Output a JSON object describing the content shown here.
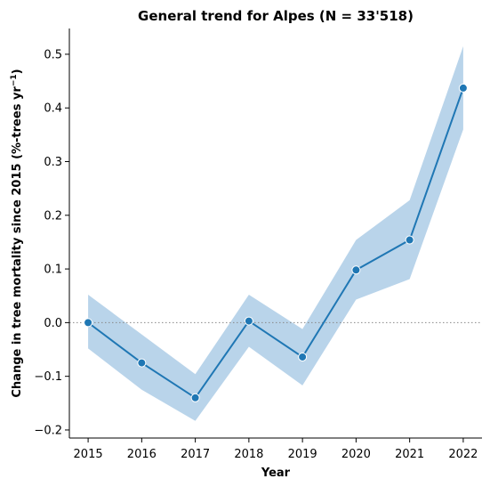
{
  "chart_data": {
    "type": "line",
    "title": "General trend for Alpes  (N = 33'518)",
    "xlabel": "Year",
    "ylabel_prefix": "Change in tree mortality since 2015 (%-trees yr",
    "ylabel_superscript": "−1",
    "ylabel_suffix": ")",
    "x": [
      2015,
      2016,
      2017,
      2018,
      2019,
      2020,
      2021,
      2022
    ],
    "x_tick_labels": [
      "2015",
      "2016",
      "2017",
      "2018",
      "2019",
      "2020",
      "2021",
      "2022"
    ],
    "values": [
      0.0,
      -0.075,
      -0.14,
      0.003,
      -0.064,
      0.098,
      0.154,
      0.437
    ],
    "ci_lower": [
      -0.048,
      -0.125,
      -0.183,
      -0.045,
      -0.117,
      0.043,
      0.081,
      0.36
    ],
    "ci_upper": [
      0.052,
      -0.022,
      -0.096,
      0.052,
      -0.012,
      0.154,
      0.228,
      0.515
    ],
    "y_ticks": [
      -0.2,
      -0.1,
      0.0,
      0.1,
      0.2,
      0.3,
      0.4,
      0.5
    ],
    "y_tick_labels": [
      "−0.2",
      "−0.1",
      "0.0",
      "0.1",
      "0.2",
      "0.3",
      "0.4",
      "0.5"
    ],
    "xlim": [
      2014.65,
      2022.35
    ],
    "ylim": [
      -0.215,
      0.548
    ],
    "reference_line_y": 0.0,
    "grid": false,
    "line_color": "#1f77b4",
    "band_color": "#b9d4ea",
    "reference_line_color": "#888888"
  }
}
